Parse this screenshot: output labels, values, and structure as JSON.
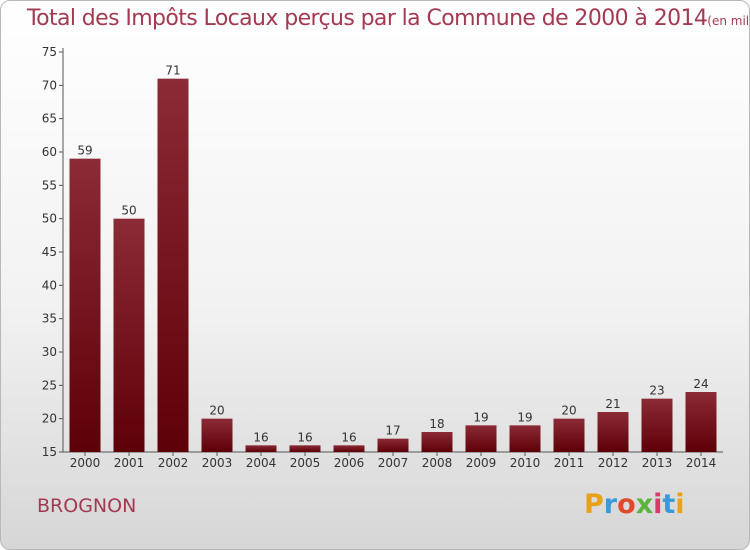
{
  "chart_data": {
    "type": "bar",
    "title": "Total des Impôts Locaux perçus par la Commune de 2000 à 2014",
    "unit": "(en milliers d'€)",
    "subtitle": "BROGNON",
    "categories": [
      "2000",
      "2001",
      "2002",
      "2003",
      "2004",
      "2005",
      "2006",
      "2007",
      "2008",
      "2009",
      "2010",
      "2011",
      "2012",
      "2013",
      "2014"
    ],
    "values": [
      59,
      50,
      71,
      20,
      16,
      16,
      16,
      17,
      18,
      19,
      19,
      20,
      21,
      23,
      24
    ],
    "ylim": [
      15,
      75
    ],
    "yticks": [
      15,
      20,
      25,
      30,
      35,
      40,
      45,
      50,
      55,
      60,
      65,
      70,
      75
    ],
    "grid": false,
    "bar_color": "#7a1420"
  },
  "logo": {
    "text": "Proxiti",
    "colors": [
      "#e8a21a",
      "#3a9ad9",
      "#e04a2a",
      "#5db33b",
      "#d93a6a",
      "#3a9ad9",
      "#e8a21a"
    ]
  }
}
